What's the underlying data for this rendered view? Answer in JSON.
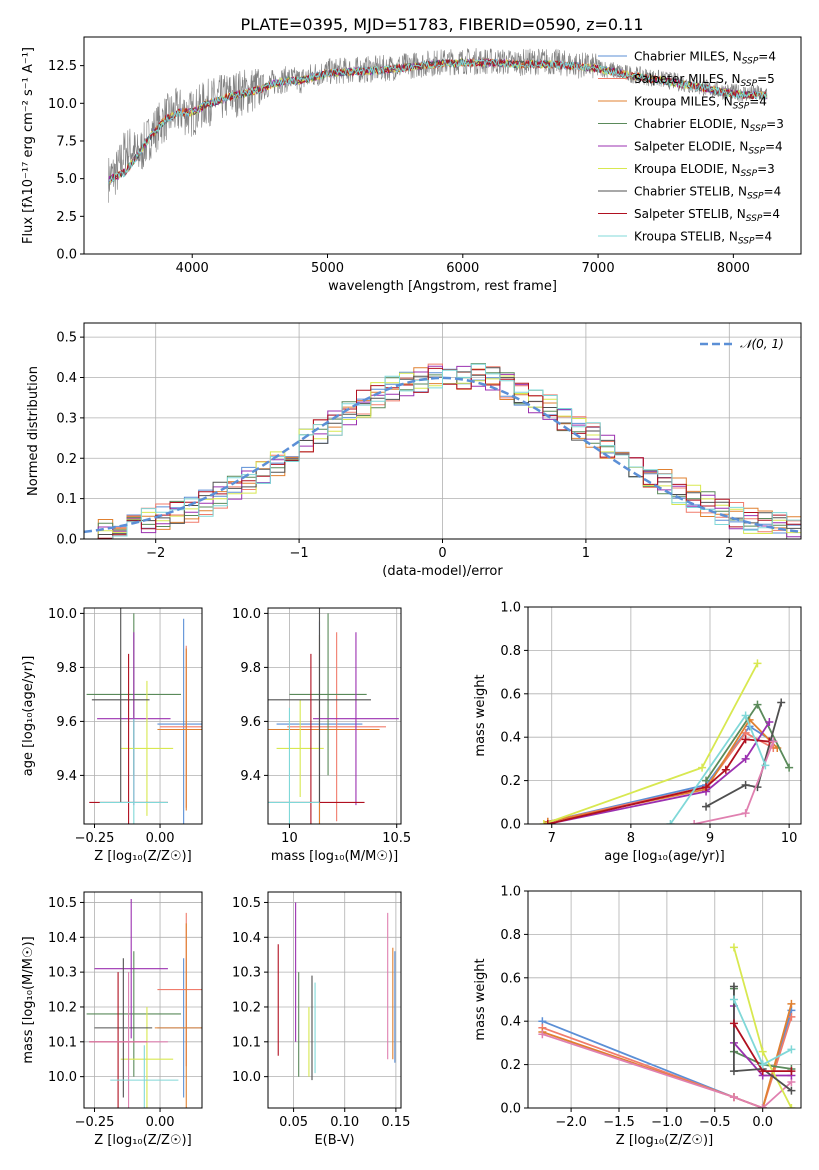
{
  "title": "PLATE=0395, MJD=51783, FIBERID=0590, z=0.11",
  "models": [
    {
      "name": "Chabrier MILES",
      "n_ssp": 4,
      "color": "#5b8fd6"
    },
    {
      "name": "Salpeter MILES",
      "n_ssp": 5,
      "color": "#f07c6c"
    },
    {
      "name": "Kroupa MILES",
      "n_ssp": 4,
      "color": "#e08030"
    },
    {
      "name": "Chabrier ELODIE",
      "n_ssp": 3,
      "color": "#5a8a5a"
    },
    {
      "name": "Salpeter ELODIE",
      "n_ssp": 4,
      "color": "#9b30b0"
    },
    {
      "name": "Kroupa ELODIE",
      "n_ssp": 3,
      "color": "#d8e850"
    },
    {
      "name": "Chabrier STELIB",
      "n_ssp": 4,
      "color": "#505050"
    },
    {
      "name": "Salpeter STELIB",
      "n_ssp": 4,
      "color": "#b01020"
    },
    {
      "name": "Kroupa STELIB",
      "n_ssp": 4,
      "color": "#80d8d8"
    }
  ],
  "chart_data": [
    {
      "id": "spectrum",
      "type": "line",
      "xlabel": "wavelength [Angstrom, rest frame]",
      "ylabel": "Flux [fλ10⁻¹⁷ erg cm⁻² s⁻¹ A⁻¹]",
      "xlim": [
        3200,
        8500
      ],
      "ylim": [
        0,
        14.4
      ],
      "xticks": [
        4000,
        5000,
        6000,
        7000,
        8000
      ],
      "yticks": [
        0.0,
        2.5,
        5.0,
        7.5,
        10.0,
        12.5
      ],
      "data_color": "#808080",
      "data_wavelength": [
        3380,
        3450,
        3500,
        3550,
        3600,
        3700,
        3800,
        3900,
        4000,
        4100,
        4200,
        4300,
        4400,
        4500,
        4600,
        4700,
        4800,
        4900,
        5000,
        5200,
        5400,
        5600,
        5800,
        6000,
        6200,
        6400,
        6600,
        6800,
        7000,
        7200,
        7400,
        7600,
        7800,
        8000,
        8250
      ],
      "data_flux": [
        5.0,
        5.5,
        6.8,
        7.0,
        6.5,
        8.0,
        9.0,
        9.5,
        9.3,
        10.0,
        10.3,
        10.6,
        10.8,
        11.0,
        11.4,
        11.6,
        11.5,
        11.9,
        12.1,
        12.2,
        12.3,
        12.5,
        12.7,
        12.8,
        12.8,
        12.7,
        12.8,
        12.6,
        12.4,
        12.0,
        11.7,
        11.4,
        11.0,
        10.7,
        10.6
      ],
      "model_wavelength": [
        3380,
        3500,
        3600,
        3700,
        3800,
        3900,
        4000,
        4100,
        4200,
        4300,
        4400,
        4500,
        4600,
        4700,
        4800,
        5000,
        5200,
        5400,
        5600,
        5800,
        6000,
        6200,
        6400,
        6600,
        6800,
        7000,
        7200,
        7400,
        7600,
        7800,
        8000,
        8250
      ],
      "model_flux": [
        4.9,
        5.4,
        6.6,
        7.9,
        8.9,
        9.4,
        9.4,
        9.9,
        10.2,
        10.5,
        10.7,
        10.9,
        11.3,
        11.5,
        11.5,
        12.0,
        12.1,
        12.2,
        12.4,
        12.6,
        12.7,
        12.7,
        12.6,
        12.6,
        12.5,
        12.3,
        11.9,
        11.6,
        11.3,
        11.0,
        10.6,
        10.5
      ]
    },
    {
      "id": "residuals",
      "type": "histogram",
      "xlabel": "(data-model)/error",
      "ylabel": "Normed distribution",
      "xlim": [
        -2.5,
        2.5
      ],
      "ylim": [
        0,
        0.535
      ],
      "xticks": [
        -2,
        -1,
        0,
        1,
        2
      ],
      "yticks": [
        0.0,
        0.1,
        0.2,
        0.3,
        0.4,
        0.5
      ],
      "gaussian_label": "𝒩(0, 1)",
      "gaussian_color": "#5b8fd6"
    },
    {
      "id": "age-vs-Z",
      "type": "errorbar",
      "xlabel": "Z [log₁₀(Z/Z☉)]",
      "ylabel": "age  [log₁₀(age/yr)]",
      "xlim": [
        -0.29,
        0.16
      ],
      "ylim": [
        9.22,
        10.02
      ],
      "xticks": [
        -0.25,
        0.0
      ],
      "xticklabels": [
        "−0.25",
        "0.00"
      ],
      "yticks": [
        9.4,
        9.6,
        9.8,
        10.0
      ],
      "points": [
        {
          "x": 0.09,
          "xerr": 0.1,
          "y": 9.59,
          "yerr": 0.39,
          "color": "#5b8fd6"
        },
        {
          "x": 0.1,
          "xerr": 0.1,
          "y": 9.58,
          "yerr": 0.3,
          "color": "#f07c6c"
        },
        {
          "x": 0.1,
          "xerr": 0.11,
          "y": 9.57,
          "yerr": 0.3,
          "color": "#e08030"
        },
        {
          "x": -0.1,
          "xerr": 0.18,
          "y": 9.7,
          "yerr": 0.3,
          "color": "#5a8a5a"
        },
        {
          "x": -0.1,
          "xerr": 0.14,
          "y": 9.61,
          "yerr": 0.32,
          "color": "#9b30b0"
        },
        {
          "x": -0.05,
          "xerr": 0.1,
          "y": 9.5,
          "yerr": 0.25,
          "color": "#d8e850"
        },
        {
          "x": -0.15,
          "xerr": 0.11,
          "y": 9.68,
          "yerr": 0.38,
          "color": "#505050"
        },
        {
          "x": -0.12,
          "xerr": 0.15,
          "y": 9.3,
          "yerr": 0.55,
          "color": "#b01020"
        },
        {
          "x": -0.1,
          "xerr": 0.13,
          "y": 9.3,
          "yerr": 0.31,
          "color": "#80d8d8"
        }
      ]
    },
    {
      "id": "age-vs-mass",
      "type": "errorbar",
      "xlabel": "mass [log₁₀(M/M☉)]",
      "xlim": [
        9.9,
        10.52
      ],
      "ylim": [
        9.22,
        10.02
      ],
      "xticks": [
        10.0,
        10.5
      ],
      "yticks": [
        9.4,
        9.6,
        9.8,
        10.0
      ],
      "points": [
        {
          "x": 10.14,
          "xerr": 0.2,
          "y": 9.59,
          "yerr": 0.38,
          "color": "#5b8fd6"
        },
        {
          "x": 10.22,
          "xerr": 0.23,
          "y": 9.58,
          "yerr": 0.35,
          "color": "#f07c6c"
        },
        {
          "x": 10.14,
          "xerr": 0.28,
          "y": 9.57,
          "yerr": 0.35,
          "color": "#e08030"
        },
        {
          "x": 10.18,
          "xerr": 0.18,
          "y": 9.7,
          "yerr": 0.3,
          "color": "#5a8a5a"
        },
        {
          "x": 10.31,
          "xerr": 0.2,
          "y": 9.61,
          "yerr": 0.32,
          "color": "#9b30b0"
        },
        {
          "x": 10.05,
          "xerr": 0.11,
          "y": 9.5,
          "yerr": 0.18,
          "color": "#d8e850"
        },
        {
          "x": 10.14,
          "xerr": 0.24,
          "y": 9.68,
          "yerr": 0.38,
          "color": "#505050"
        },
        {
          "x": 10.1,
          "xerr": 0.25,
          "y": 9.3,
          "yerr": 0.55,
          "color": "#b01020"
        },
        {
          "x": 10.0,
          "xerr": 0.14,
          "y": 9.3,
          "yerr": 0.35,
          "color": "#80d8d8"
        }
      ]
    },
    {
      "id": "mass-weight-vs-age",
      "type": "line",
      "xlabel": "age  [log₁₀(age/yr)]",
      "ylabel": "mass weight",
      "xlim": [
        6.7,
        10.15
      ],
      "ylim": [
        0,
        1
      ],
      "xticks": [
        7,
        8,
        9,
        10
      ],
      "yticks": [
        0.0,
        0.2,
        0.4,
        0.6,
        0.8,
        1.0
      ],
      "series": [
        {
          "color": "#5b8fd6",
          "x": [
            6.95,
            8.95,
            9.5,
            9.8
          ],
          "y": [
            0.01,
            0.18,
            0.45,
            0.38
          ]
        },
        {
          "color": "#f07c6c",
          "x": [
            6.95,
            8.95,
            9.45,
            9.8
          ],
          "y": [
            0.01,
            0.17,
            0.42,
            0.35
          ]
        },
        {
          "color": "#e08030",
          "x": [
            6.95,
            8.95,
            9.5,
            9.85
          ],
          "y": [
            0.01,
            0.16,
            0.48,
            0.35
          ]
        },
        {
          "color": "#5a8a5a",
          "x": [
            8.95,
            9.6,
            10.0
          ],
          "y": [
            0.2,
            0.55,
            0.26
          ]
        },
        {
          "color": "#9b30b0",
          "x": [
            6.95,
            8.95,
            9.45,
            9.75
          ],
          "y": [
            0.0,
            0.15,
            0.3,
            0.47
          ]
        },
        {
          "color": "#d8e850",
          "x": [
            6.9,
            8.9,
            9.6
          ],
          "y": [
            0.0,
            0.26,
            0.74
          ]
        },
        {
          "color": "#505050",
          "x": [
            8.95,
            9.45,
            9.6,
            9.9
          ],
          "y": [
            0.08,
            0.18,
            0.17,
            0.56
          ]
        },
        {
          "color": "#b01020",
          "x": [
            6.95,
            8.95,
            9.2,
            9.45,
            9.75
          ],
          "y": [
            0.0,
            0.17,
            0.25,
            0.39,
            0.38
          ]
        },
        {
          "color": "#e080b0",
          "x": [
            8.8,
            9.45,
            9.8
          ],
          "y": [
            0.0,
            0.05,
            0.38
          ]
        },
        {
          "color": "#80d8d8",
          "x": [
            8.5,
            9.45,
            9.7
          ],
          "y": [
            0.0,
            0.5,
            0.27
          ]
        }
      ]
    },
    {
      "id": "mass-vs-Z",
      "type": "errorbar",
      "xlabel": "Z [log₁₀(Z/Z☉)]",
      "ylabel": "mass [log₁₀(M/M☉)]",
      "xlim": [
        -0.29,
        0.16
      ],
      "ylim": [
        9.91,
        10.53
      ],
      "xticks": [
        -0.25,
        0.0
      ],
      "xticklabels": [
        "−0.25",
        "0.00"
      ],
      "yticks": [
        10.0,
        10.1,
        10.2,
        10.3,
        10.4,
        10.5
      ],
      "points": [
        {
          "x": 0.09,
          "xerr": 0.1,
          "y": 10.14,
          "yerr": 0.2,
          "color": "#5b8fd6"
        },
        {
          "x": 0.1,
          "xerr": 0.11,
          "y": 10.25,
          "yerr": 0.22,
          "color": "#f07c6c"
        },
        {
          "x": 0.1,
          "xerr": 0.12,
          "y": 10.14,
          "yerr": 0.3,
          "color": "#e08030"
        },
        {
          "x": -0.1,
          "xerr": 0.18,
          "y": 10.18,
          "yerr": 0.18,
          "color": "#5a8a5a"
        },
        {
          "x": -0.11,
          "xerr": 0.14,
          "y": 10.31,
          "yerr": 0.2,
          "color": "#9b30b0"
        },
        {
          "x": -0.05,
          "xerr": 0.1,
          "y": 10.05,
          "yerr": 0.15,
          "color": "#d8e850"
        },
        {
          "x": -0.14,
          "xerr": 0.11,
          "y": 10.14,
          "yerr": 0.2,
          "color": "#505050"
        },
        {
          "x": -0.16,
          "xerr": 0.11,
          "y": 10.1,
          "yerr": 0.2,
          "color": "#b01020"
        },
        {
          "x": -0.12,
          "xerr": 0.15,
          "y": 10.1,
          "yerr": 0.2,
          "color": "#e080b0"
        },
        {
          "x": -0.06,
          "xerr": 0.13,
          "y": 9.99,
          "yerr": 0.1,
          "color": "#80d8d8"
        }
      ]
    },
    {
      "id": "mass-vs-EBV",
      "type": "errorbar",
      "xlabel": "E(B-V)",
      "xlim": [
        0.025,
        0.155
      ],
      "ylim": [
        9.91,
        10.53
      ],
      "xticks": [
        0.05,
        0.1,
        0.15
      ],
      "xticklabels": [
        "0.05",
        "0.10",
        "0.15"
      ],
      "yticks": [
        10.0,
        10.1,
        10.2,
        10.3,
        10.4,
        10.5
      ],
      "points": [
        {
          "x": 0.035,
          "y": 10.22,
          "yerr": 0.16,
          "color": "#b01020"
        },
        {
          "x": 0.052,
          "y": 10.3,
          "yerr": 0.2,
          "color": "#9b30b0"
        },
        {
          "x": 0.055,
          "y": 10.15,
          "yerr": 0.15,
          "color": "#5a8a5a"
        },
        {
          "x": 0.065,
          "y": 10.1,
          "yerr": 0.1,
          "color": "#d8e850"
        },
        {
          "x": 0.068,
          "y": 10.14,
          "yerr": 0.15,
          "color": "#505050"
        },
        {
          "x": 0.071,
          "y": 10.14,
          "yerr": 0.13,
          "color": "#80d8d8"
        },
        {
          "x": 0.142,
          "y": 10.26,
          "yerr": 0.21,
          "color": "#e080b0"
        },
        {
          "x": 0.147,
          "y": 10.21,
          "yerr": 0.16,
          "color": "#e08030"
        },
        {
          "x": 0.149,
          "y": 10.2,
          "yerr": 0.16,
          "color": "#5b8fd6"
        }
      ]
    },
    {
      "id": "mass-weight-vs-Z",
      "type": "line",
      "xlabel": "Z [log₁₀(Z/Z☉)]",
      "ylabel": "mass weight",
      "xlim": [
        -2.45,
        0.4
      ],
      "ylim": [
        0,
        1
      ],
      "xticks": [
        -2.0,
        -1.5,
        -1.0,
        -0.5,
        0.0
      ],
      "xticklabels": [
        "−2.0",
        "−1.5",
        "−1.0",
        "−0.5",
        "0.0"
      ],
      "yticks": [
        0.0,
        0.2,
        0.4,
        0.6,
        0.8,
        1.0
      ],
      "series": [
        {
          "color": "#5b8fd6",
          "x": [
            -2.3,
            -0.3,
            0.0,
            0.3
          ],
          "y": [
            0.4,
            0.05,
            0.0,
            0.45
          ]
        },
        {
          "color": "#f07c6c",
          "x": [
            -2.3,
            -0.3,
            0.0,
            0.3
          ],
          "y": [
            0.37,
            0.05,
            0.0,
            0.42
          ]
        },
        {
          "color": "#e08030",
          "x": [
            -2.3,
            -0.3,
            0.0,
            0.3
          ],
          "y": [
            0.35,
            0.05,
            0.0,
            0.48
          ]
        },
        {
          "color": "#e080b0",
          "x": [
            -2.3,
            -0.3,
            0.0,
            0.3
          ],
          "y": [
            0.34,
            0.05,
            0.0,
            0.12
          ]
        },
        {
          "color": "#5a8a5a",
          "x": [
            -0.3,
            -0.3,
            0.0,
            0.3
          ],
          "y": [
            0.55,
            0.26,
            0.2,
            0.18
          ]
        },
        {
          "color": "#9b30b0",
          "x": [
            -0.3,
            -0.3,
            0.0,
            0.3
          ],
          "y": [
            0.47,
            0.3,
            0.15,
            0.15
          ]
        },
        {
          "color": "#d8e850",
          "x": [
            -0.3,
            0.0,
            0.3
          ],
          "y": [
            0.74,
            0.26,
            0.0
          ]
        },
        {
          "color": "#505050",
          "x": [
            -0.3,
            -0.3,
            0.0,
            0.3
          ],
          "y": [
            0.56,
            0.17,
            0.18,
            0.08
          ]
        },
        {
          "color": "#b01020",
          "x": [
            -0.3,
            0.0,
            0.3
          ],
          "y": [
            0.39,
            0.17,
            0.17
          ]
        },
        {
          "color": "#80d8d8",
          "x": [
            -0.3,
            0.0,
            0.3
          ],
          "y": [
            0.5,
            0.2,
            0.27
          ]
        }
      ]
    }
  ]
}
